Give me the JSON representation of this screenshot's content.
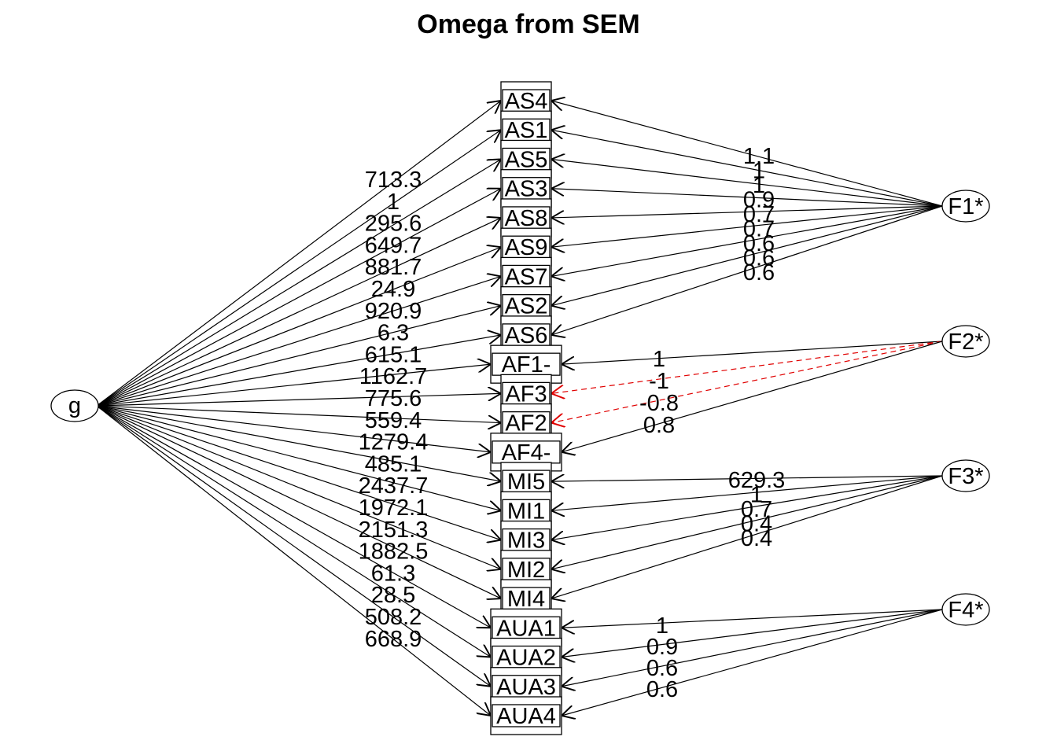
{
  "title": "Omega from SEM",
  "general_factor": {
    "label": "g"
  },
  "colors": {
    "positive": "#000000",
    "negative": "#e00000"
  },
  "variables": [
    "AS4",
    "AS1",
    "AS5",
    "AS3",
    "AS8",
    "AS9",
    "AS7",
    "AS2",
    "AS6",
    "AF1-",
    "AF3",
    "AF2",
    "AF4-",
    "MI5",
    "MI1",
    "MI3",
    "MI2",
    "MI4",
    "AUA1",
    "AUA2",
    "AUA3",
    "AUA4"
  ],
  "g_loadings": [
    "713.3",
    "1",
    "295.6",
    "649.7",
    "881.7",
    "24.9",
    "920.9",
    "6.3",
    "615.1",
    "1162.7",
    "775.6",
    "559.4",
    "1279.4",
    "485.1",
    "2437.7",
    "1972.1",
    "2151.3",
    "1882.5",
    "61.3",
    "28.5",
    "508.2",
    "668.9"
  ],
  "group_factors": [
    {
      "label": "F1*",
      "edges": [
        {
          "var": "AS4",
          "value": "1.1",
          "negative": false
        },
        {
          "var": "AS1",
          "value": "1",
          "negative": false
        },
        {
          "var": "AS5",
          "value": "1",
          "negative": false
        },
        {
          "var": "AS3",
          "value": "0.9",
          "negative": false
        },
        {
          "var": "AS8",
          "value": "0.7",
          "negative": false
        },
        {
          "var": "AS9",
          "value": "0.7",
          "negative": false
        },
        {
          "var": "AS7",
          "value": "0.6",
          "negative": false
        },
        {
          "var": "AS2",
          "value": "0.6",
          "negative": false
        },
        {
          "var": "AS6",
          "value": "0.6",
          "negative": false
        }
      ]
    },
    {
      "label": "F2*",
      "edges": [
        {
          "var": "AF1-",
          "value": "1",
          "negative": false
        },
        {
          "var": "AF3",
          "value": "-1",
          "negative": true
        },
        {
          "var": "AF2",
          "value": "-0.8",
          "negative": true
        },
        {
          "var": "AF4-",
          "value": "0.8",
          "negative": false
        }
      ]
    },
    {
      "label": "F3*",
      "edges": [
        {
          "var": "MI5",
          "value": "629.3",
          "negative": false
        },
        {
          "var": "MI1",
          "value": "1",
          "negative": false
        },
        {
          "var": "MI3",
          "value": "0.7",
          "negative": false
        },
        {
          "var": "MI2",
          "value": "0.4",
          "negative": false
        },
        {
          "var": "MI4",
          "value": "0.4",
          "negative": false
        }
      ]
    },
    {
      "label": "F4*",
      "edges": [
        {
          "var": "AUA1",
          "value": "1",
          "negative": false
        },
        {
          "var": "AUA2",
          "value": "0.9",
          "negative": false
        },
        {
          "var": "AUA3",
          "value": "0.6",
          "negative": false
        },
        {
          "var": "AUA4",
          "value": "0.6",
          "negative": false
        }
      ]
    }
  ]
}
